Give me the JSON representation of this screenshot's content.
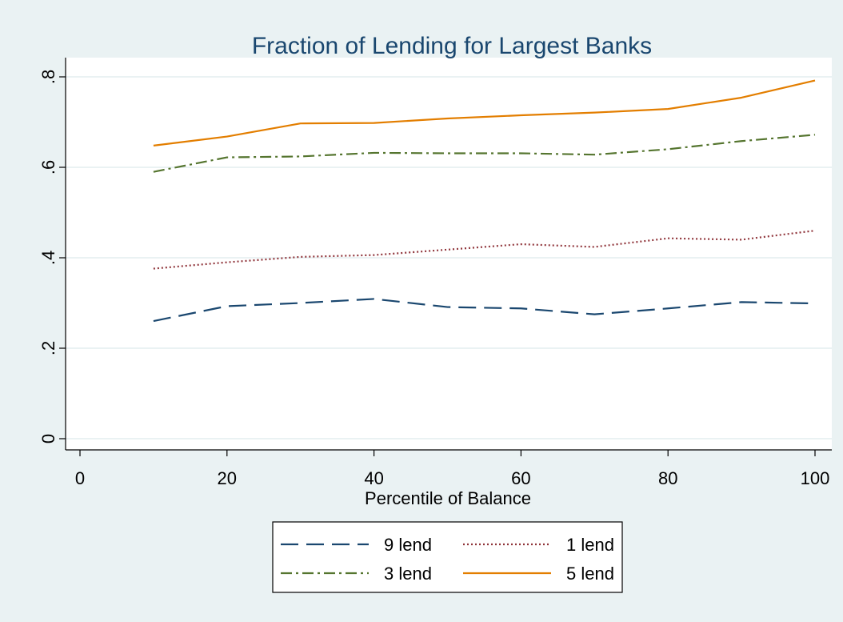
{
  "chart_data": {
    "type": "line",
    "title": "Fraction of Lending for Largest Banks",
    "xlabel": "Percentile of Balance",
    "ylabel": "",
    "xlim": [
      0,
      100
    ],
    "ylim": [
      0,
      0.8
    ],
    "xticks": [
      0,
      20,
      40,
      60,
      80,
      100
    ],
    "xtick_labels": [
      "0",
      "20",
      "40",
      "60",
      "80",
      "100"
    ],
    "yticks": [
      0,
      0.2,
      0.4,
      0.6,
      0.8
    ],
    "ytick_labels": [
      "0",
      ".2",
      ".4",
      ".6",
      ".8"
    ],
    "grid": true,
    "legend_position": "bottom",
    "x": [
      10,
      20,
      30,
      40,
      50,
      60,
      70,
      80,
      90,
      100
    ],
    "series": [
      {
        "name": "9 lend",
        "color": "#1a476f",
        "dash": "dashed",
        "values": [
          0.26,
          0.293,
          0.3,
          0.309,
          0.291,
          0.288,
          0.275,
          0.288,
          0.302,
          0.299
        ]
      },
      {
        "name": "1 lend",
        "color": "#90353b",
        "dash": "dotted",
        "values": [
          0.376,
          0.39,
          0.402,
          0.406,
          0.418,
          0.43,
          0.424,
          0.443,
          0.44,
          0.46
        ]
      },
      {
        "name": "3 lend",
        "color": "#55752f",
        "dash": "dashdot",
        "values": [
          0.59,
          0.622,
          0.624,
          0.632,
          0.631,
          0.631,
          0.628,
          0.64,
          0.658,
          0.672
        ]
      },
      {
        "name": "5 lend",
        "color": "#e37e00",
        "dash": "solid",
        "values": [
          0.648,
          0.668,
          0.697,
          0.698,
          0.708,
          0.715,
          0.721,
          0.729,
          0.754,
          0.792
        ]
      }
    ],
    "legend_order": [
      0,
      1,
      2,
      3
    ]
  }
}
